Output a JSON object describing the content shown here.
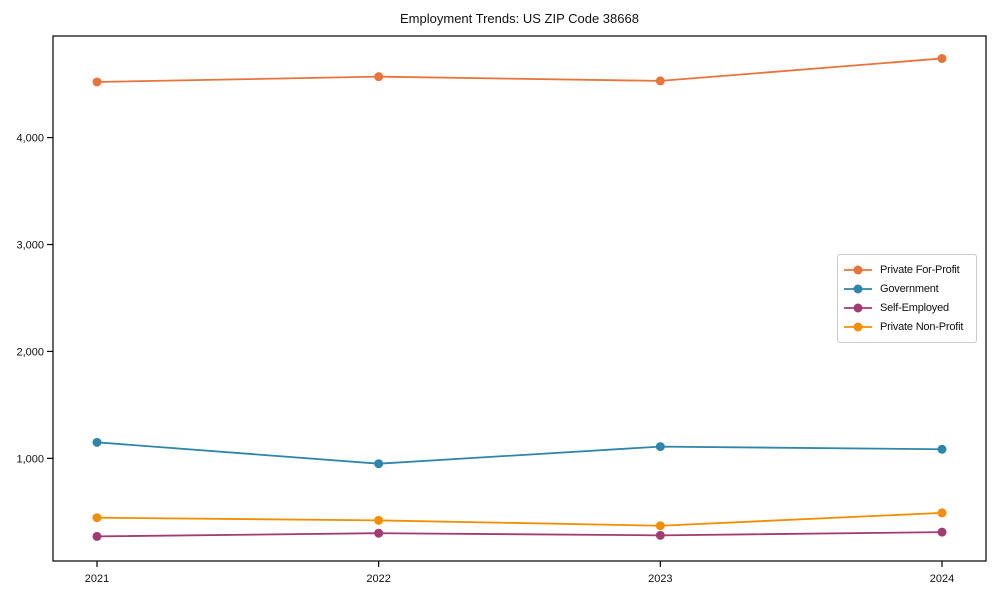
{
  "chart_data": {
    "type": "line",
    "title": "Employment Trends: US ZIP Code 38668",
    "xlabel": "",
    "ylabel": "",
    "x": [
      2021,
      2022,
      2023,
      2024
    ],
    "xtick_labels": [
      "2021",
      "2022",
      "2023",
      "2024"
    ],
    "yticks": [
      1000,
      2000,
      3000,
      4000
    ],
    "ytick_labels": [
      "1,000",
      "2,000",
      "3,000",
      "4,000"
    ],
    "ylim": [
      40,
      4950
    ],
    "grid": false,
    "legend_position": "right-middle",
    "marker": "circle",
    "series": [
      {
        "name": "Private For-Profit",
        "color": "#e8743b",
        "values": [
          4520,
          4570,
          4530,
          4740
        ]
      },
      {
        "name": "Government",
        "color": "#2e86ab",
        "values": [
          1150,
          950,
          1110,
          1085
        ]
      },
      {
        "name": "Self-Employed",
        "color": "#a23b72",
        "values": [
          270,
          300,
          280,
          310
        ]
      },
      {
        "name": "Private Non-Profit",
        "color": "#f18f01",
        "values": [
          445,
          420,
          370,
          490
        ]
      }
    ]
  },
  "style": {
    "axis_color": "#000000",
    "text_color": "#111111",
    "background": "#ffffff"
  }
}
